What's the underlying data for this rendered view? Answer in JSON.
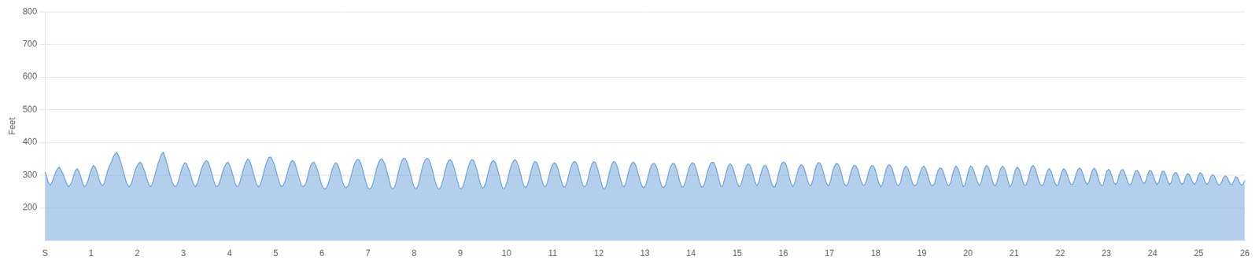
{
  "chart_data": {
    "type": "area",
    "ylabel": "Feet",
    "xlim": [
      0,
      26
    ],
    "xticks": [
      {
        "value": 0,
        "label": "S"
      },
      1,
      2,
      3,
      4,
      5,
      6,
      7,
      8,
      9,
      10,
      11,
      12,
      13,
      14,
      15,
      16,
      17,
      18,
      19,
      20,
      21,
      22,
      23,
      24,
      25,
      26
    ],
    "ylim": [
      100,
      800
    ],
    "yticks": [
      200,
      300,
      400,
      500,
      600,
      700,
      800
    ],
    "grid": "y",
    "color": "#6aA0d8",
    "values": [
      310,
      295,
      275,
      270,
      280,
      295,
      310,
      320,
      325,
      315,
      305,
      290,
      275,
      265,
      270,
      280,
      300,
      315,
      320,
      310,
      295,
      275,
      265,
      270,
      285,
      305,
      320,
      330,
      325,
      310,
      290,
      275,
      268,
      275,
      295,
      315,
      330,
      340,
      355,
      365,
      370,
      360,
      345,
      325,
      305,
      285,
      270,
      265,
      272,
      290,
      310,
      325,
      335,
      340,
      335,
      320,
      305,
      285,
      270,
      265,
      275,
      295,
      315,
      335,
      350,
      365,
      370,
      355,
      335,
      315,
      295,
      278,
      268,
      265,
      275,
      295,
      315,
      330,
      338,
      335,
      320,
      305,
      285,
      270,
      265,
      275,
      295,
      315,
      330,
      340,
      345,
      340,
      325,
      305,
      285,
      268,
      265,
      272,
      290,
      310,
      325,
      335,
      340,
      330,
      315,
      295,
      275,
      265,
      268,
      285,
      305,
      325,
      340,
      350,
      345,
      330,
      310,
      290,
      272,
      265,
      270,
      288,
      310,
      330,
      345,
      355,
      355,
      345,
      330,
      310,
      290,
      272,
      265,
      270,
      285,
      305,
      325,
      340,
      345,
      340,
      325,
      305,
      285,
      268,
      265,
      270,
      285,
      308,
      328,
      338,
      340,
      330,
      315,
      295,
      275,
      262,
      258,
      262,
      275,
      295,
      315,
      330,
      338,
      335,
      320,
      300,
      278,
      265,
      262,
      268,
      283,
      305,
      325,
      340,
      348,
      348,
      338,
      320,
      298,
      278,
      262,
      258,
      262,
      278,
      300,
      322,
      338,
      348,
      350,
      340,
      325,
      305,
      282,
      262,
      258,
      265,
      283,
      308,
      330,
      345,
      352,
      350,
      338,
      320,
      300,
      278,
      262,
      258,
      268,
      290,
      315,
      335,
      348,
      352,
      348,
      335,
      315,
      292,
      272,
      260,
      258,
      268,
      288,
      312,
      332,
      345,
      348,
      340,
      325,
      305,
      282,
      262,
      258,
      265,
      282,
      305,
      325,
      340,
      348,
      345,
      332,
      312,
      290,
      270,
      260,
      265,
      282,
      305,
      325,
      340,
      345,
      340,
      325,
      305,
      282,
      262,
      258,
      268,
      288,
      312,
      330,
      342,
      348,
      342,
      328,
      308,
      285,
      268,
      262,
      270,
      290,
      312,
      332,
      342,
      340,
      328,
      308,
      285,
      268,
      265,
      275,
      298,
      318,
      332,
      338,
      335,
      320,
      300,
      280,
      265,
      265,
      278,
      300,
      320,
      335,
      342,
      340,
      328,
      308,
      285,
      268,
      265,
      272,
      295,
      318,
      335,
      342,
      338,
      322,
      302,
      280,
      262,
      258,
      268,
      292,
      315,
      332,
      342,
      340,
      328,
      308,
      285,
      268,
      265,
      278,
      302,
      322,
      335,
      340,
      335,
      320,
      300,
      280,
      265,
      262,
      270,
      290,
      312,
      328,
      336,
      336,
      325,
      305,
      282,
      265,
      262,
      270,
      290,
      312,
      328,
      336,
      335,
      322,
      302,
      280,
      265,
      265,
      278,
      300,
      320,
      333,
      338,
      335,
      320,
      300,
      278,
      265,
      265,
      278,
      302,
      322,
      335,
      340,
      338,
      325,
      305,
      282,
      265,
      268,
      290,
      312,
      328,
      335,
      330,
      315,
      295,
      275,
      265,
      270,
      290,
      312,
      328,
      335,
      332,
      318,
      298,
      278,
      268,
      278,
      302,
      320,
      330,
      330,
      318,
      298,
      278,
      265,
      265,
      280,
      305,
      325,
      338,
      340,
      335,
      318,
      295,
      275,
      265,
      275,
      298,
      318,
      330,
      332,
      325,
      308,
      288,
      272,
      268,
      282,
      308,
      328,
      338,
      338,
      328,
      310,
      288,
      272,
      268,
      282,
      308,
      325,
      335,
      335,
      325,
      308,
      285,
      270,
      268,
      278,
      302,
      320,
      330,
      330,
      320,
      302,
      282,
      270,
      270,
      282,
      305,
      322,
      330,
      328,
      315,
      295,
      275,
      265,
      272,
      295,
      318,
      330,
      332,
      325,
      308,
      288,
      272,
      268,
      278,
      302,
      320,
      328,
      322,
      308,
      288,
      272,
      268,
      272,
      290,
      310,
      322,
      328,
      320,
      305,
      285,
      270,
      268,
      275,
      298,
      315,
      322,
      320,
      308,
      290,
      272,
      268,
      278,
      302,
      320,
      328,
      320,
      305,
      282,
      265,
      270,
      292,
      315,
      328,
      325,
      312,
      295,
      278,
      268,
      278,
      302,
      322,
      330,
      325,
      308,
      288,
      272,
      268,
      282,
      305,
      322,
      328,
      320,
      305,
      282,
      265,
      272,
      295,
      315,
      325,
      320,
      305,
      285,
      270,
      270,
      285,
      308,
      325,
      330,
      322,
      305,
      285,
      272,
      268,
      275,
      298,
      315,
      320,
      312,
      295,
      278,
      268,
      272,
      292,
      312,
      320,
      315,
      302,
      285,
      272,
      272,
      285,
      305,
      318,
      322,
      315,
      300,
      282,
      272,
      278,
      298,
      315,
      322,
      315,
      298,
      278,
      268,
      270,
      292,
      312,
      318,
      312,
      295,
      278,
      272,
      280,
      302,
      315,
      318,
      308,
      292,
      275,
      270,
      278,
      298,
      312,
      315,
      308,
      292,
      278,
      275,
      285,
      305,
      315,
      312,
      298,
      282,
      272,
      278,
      298,
      312,
      312,
      300,
      282,
      272,
      278,
      298,
      308,
      308,
      295,
      280,
      272,
      278,
      295,
      305,
      302,
      290,
      278,
      272,
      280,
      298,
      308,
      305,
      292,
      278,
      272,
      280,
      295,
      302,
      298,
      285,
      272,
      270,
      278,
      292,
      298,
      295,
      283,
      272,
      272,
      285,
      295,
      292,
      278,
      270,
      272,
      285
    ]
  }
}
